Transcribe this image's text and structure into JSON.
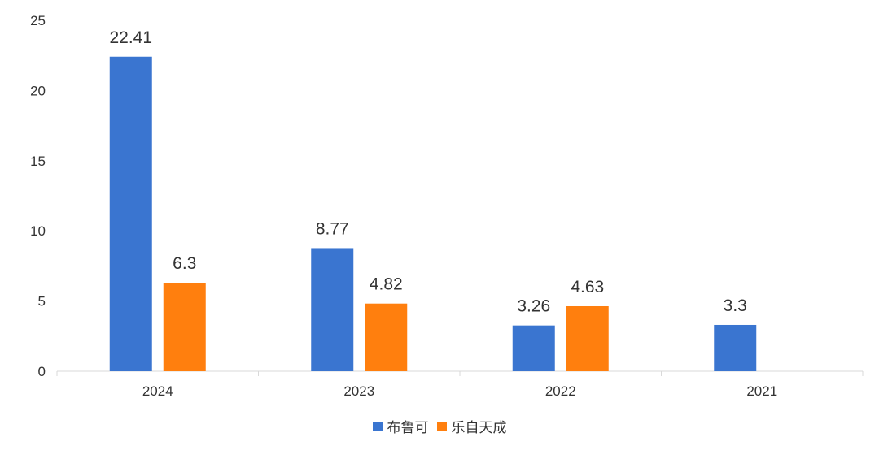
{
  "chart_data": {
    "type": "bar",
    "categories": [
      "2024",
      "2023",
      "2022",
      "2021"
    ],
    "series": [
      {
        "name": "布鲁可",
        "values": [
          22.41,
          8.77,
          3.26,
          3.3
        ],
        "color": "#3a75d0"
      },
      {
        "name": "乐自天成",
        "values": [
          6.3,
          4.82,
          4.63,
          null
        ],
        "color": "#ff7f0e"
      }
    ],
    "value_labels": [
      [
        "22.41",
        "8.77",
        "3.26",
        "3.3"
      ],
      [
        "6.3",
        "4.82",
        "4.63",
        null
      ]
    ],
    "ylim": [
      0,
      25
    ],
    "yticks": [
      "0",
      "5",
      "10",
      "15",
      "20",
      "25"
    ],
    "grid": false,
    "legend_position": "bottom-center"
  }
}
